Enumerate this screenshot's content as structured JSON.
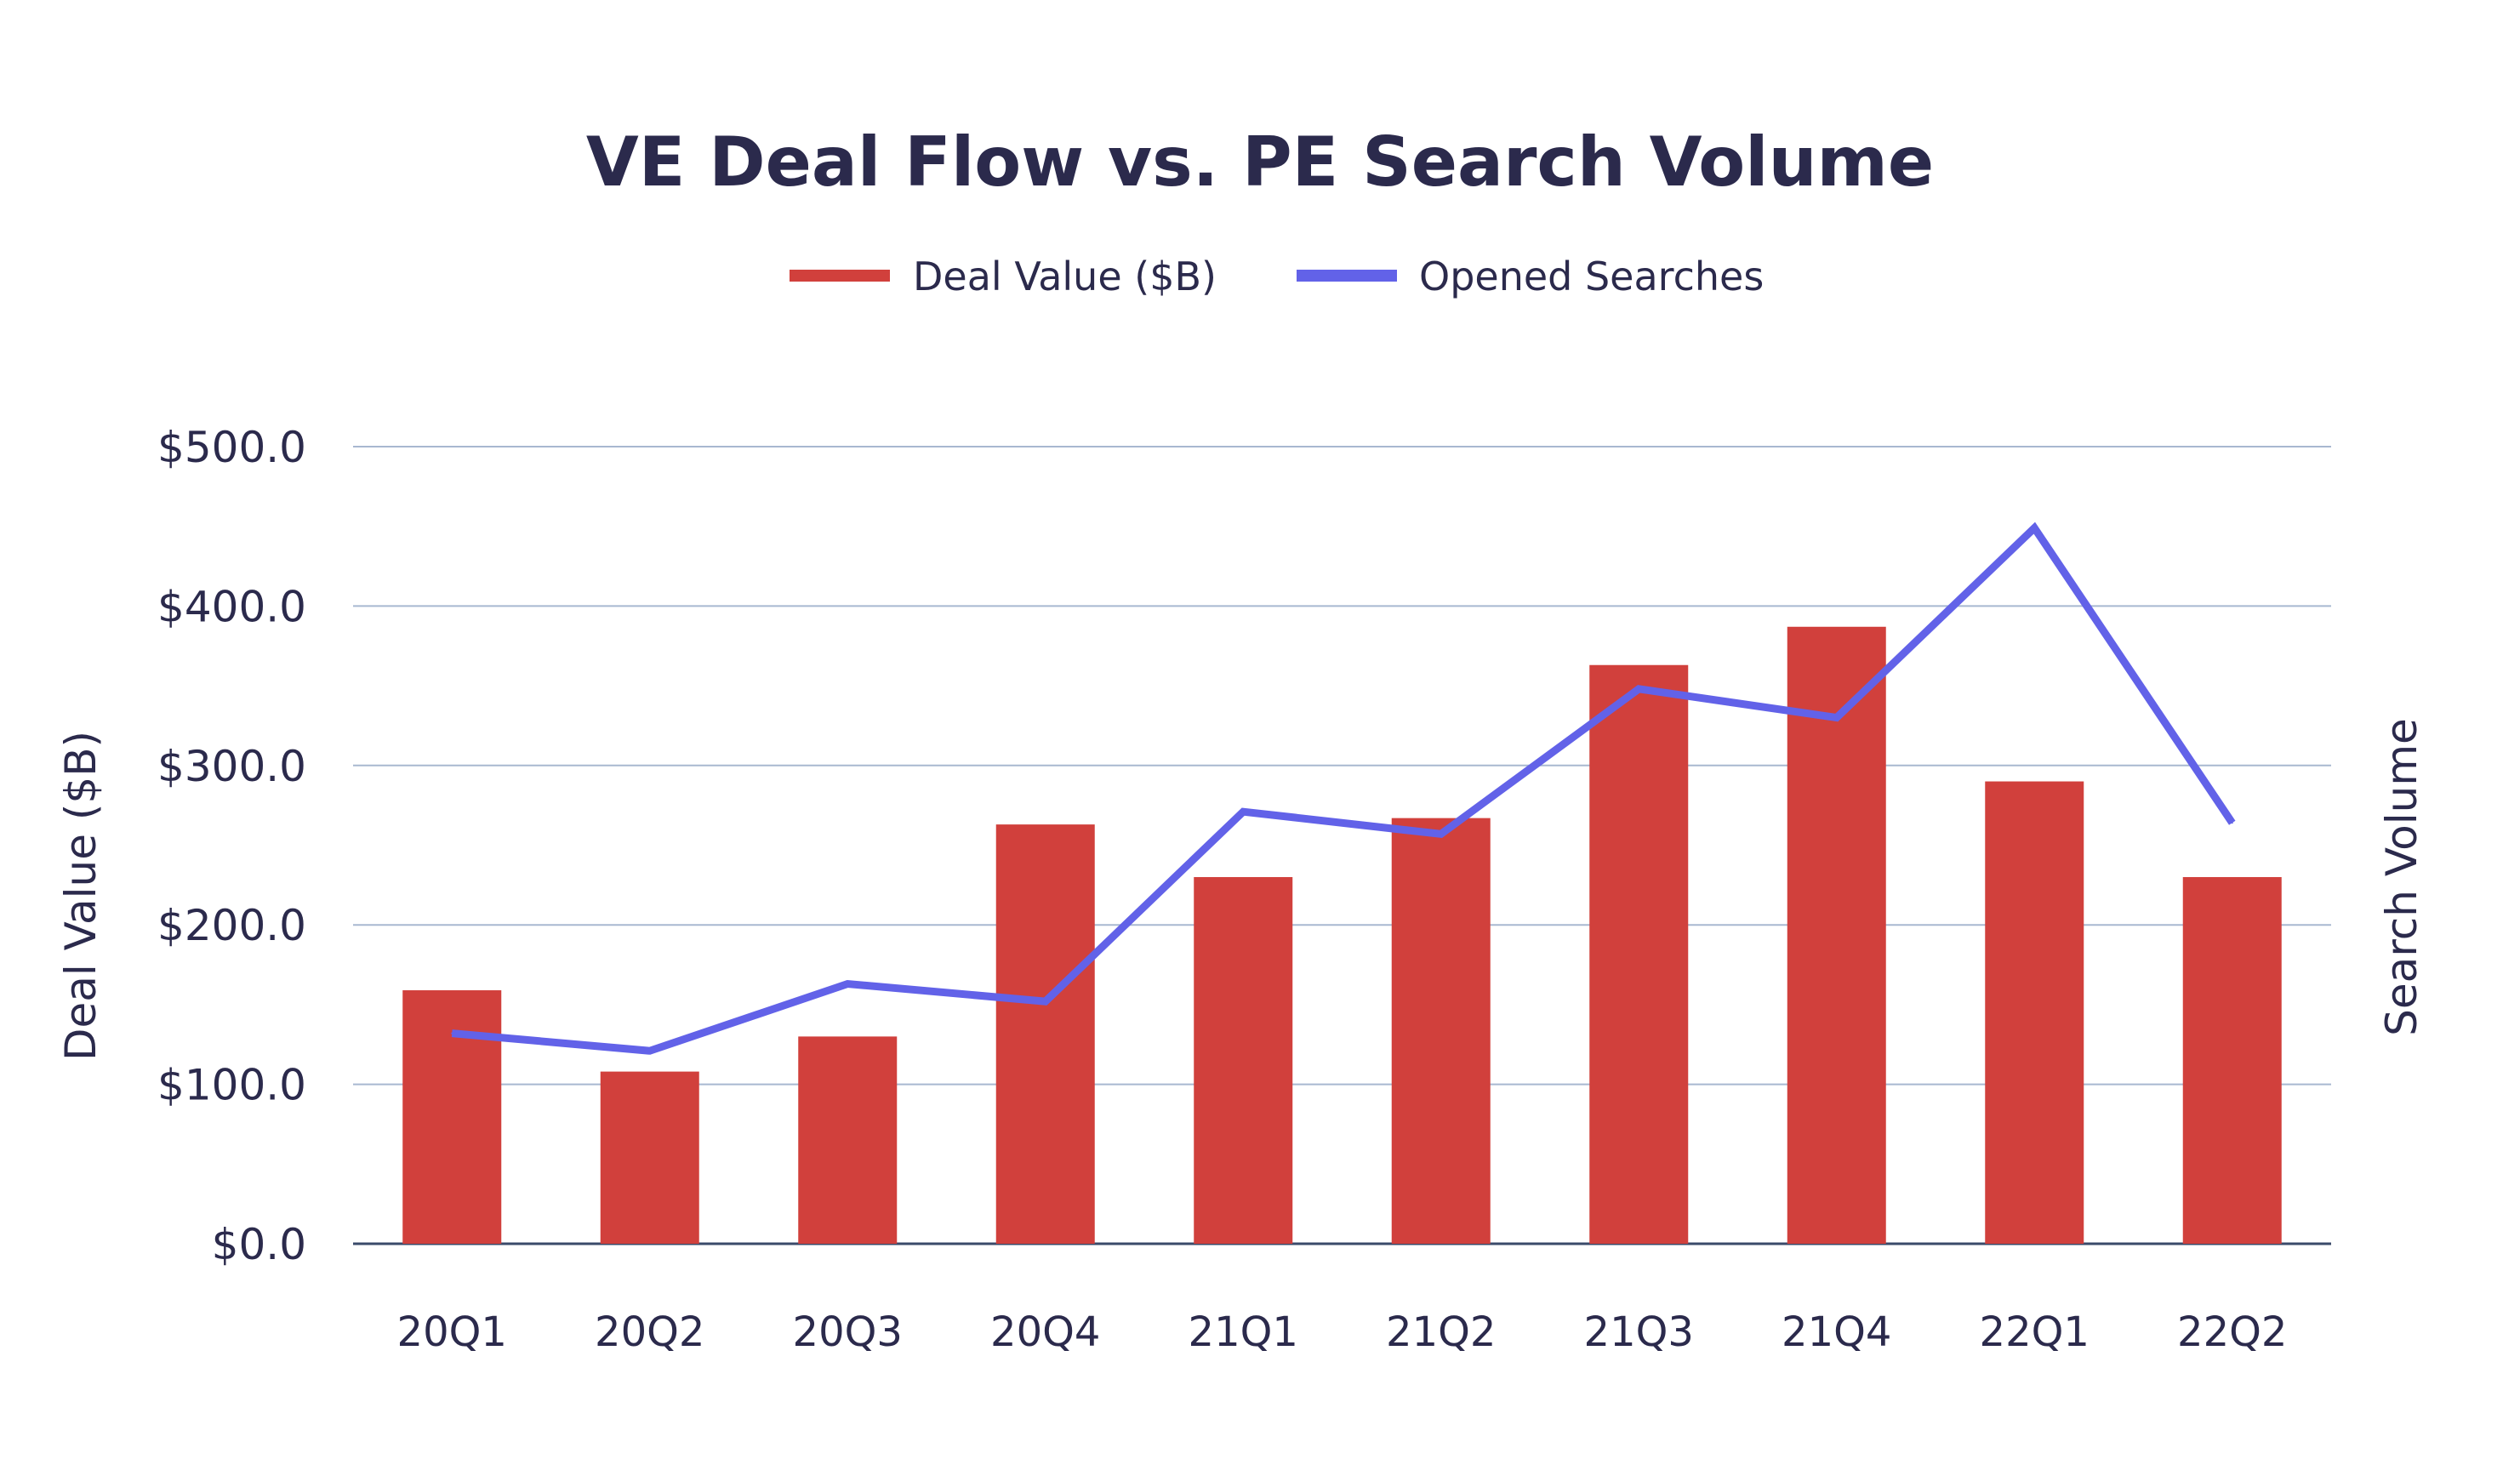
{
  "chart_data": {
    "type": "bar",
    "title": "VE Deal Flow vs. PE Search Volume",
    "categories": [
      "20Q1",
      "20Q2",
      "20Q3",
      "20Q4",
      "21Q1",
      "21Q2",
      "21Q3",
      "21Q4",
      "22Q1",
      "22Q2"
    ],
    "series": [
      {
        "name": "Deal Value ($B)",
        "type": "bar",
        "axis": "left",
        "color": "#d1403c",
        "values": [
          159,
          108,
          130,
          263,
          230,
          267,
          363,
          387,
          290,
          230
        ]
      },
      {
        "name": "Opened Searches",
        "type": "line",
        "axis": "right",
        "color": "#6262e8",
        "values": [
          132,
          121,
          163,
          152,
          271,
          257,
          348,
          330,
          449,
          264
        ]
      }
    ],
    "ylabel": "Deal Value ($B)",
    "y2label": "Search Volume",
    "ylim": [
      0,
      500
    ],
    "y2lim": [
      0,
      500
    ],
    "yticks": [
      "$0.0",
      "$100.0",
      "$200.0",
      "$300.0",
      "$400.0",
      "$500.0"
    ],
    "grid": true,
    "legend_position": "top-center",
    "colors": {
      "text": "#2b2a4c",
      "grid": "#a8b8d0",
      "axis": "#3a4a6a"
    }
  }
}
